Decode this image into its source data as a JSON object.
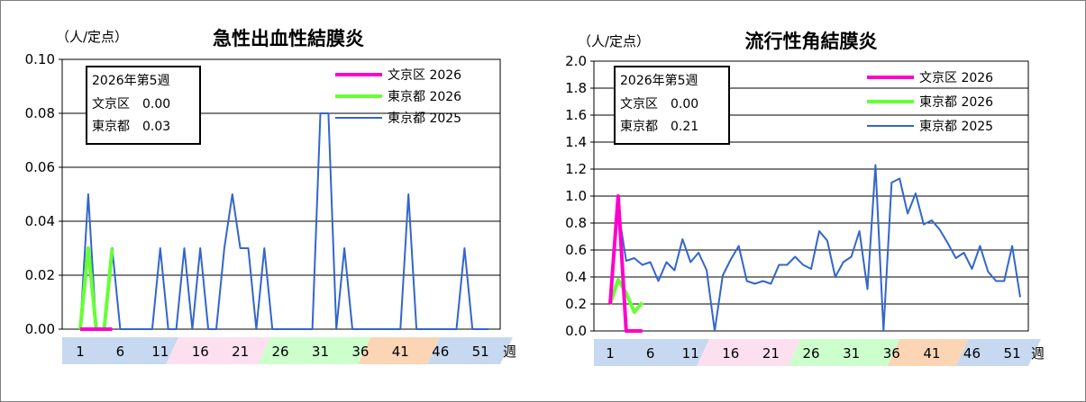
{
  "unit_label": "（人/定点）",
  "week_label": "週",
  "legend_labels": [
    "文京区 2026",
    "東京都 2026",
    "東京都 2025"
  ],
  "colors": {
    "bunkyo_2026": "#ff00cc",
    "tokyo_2026": "#66ff33",
    "tokyo_2025": "#3366cc"
  },
  "season_colors": [
    "#c6d9f1",
    "#fde0ef",
    "#ccffcc",
    "#fcd5b5",
    "#c6d9f1"
  ],
  "x_tick_labels": [
    "1",
    "6",
    "11",
    "16",
    "21",
    "26",
    "31",
    "36",
    "41",
    "46",
    "51"
  ],
  "chart_data": [
    {
      "type": "line",
      "title": "急性出血性結膜炎",
      "ylabel": "（人/定点）",
      "xlabel": "週",
      "ylim": [
        0,
        0.1
      ],
      "y_tick_labels": [
        "0.00",
        "0.02",
        "0.04",
        "0.06",
        "0.08",
        "0.10"
      ],
      "grid": true,
      "legend_position": "top-right",
      "info_box": {
        "week": "2026年第5週",
        "bunkyo": "文京区　0.00",
        "tokyo": "東京都　0.03"
      },
      "series": [
        {
          "name": "文京区 2026",
          "x": [
            1,
            2,
            3,
            4,
            5
          ],
          "values": [
            0,
            0,
            0,
            0,
            0
          ]
        },
        {
          "name": "東京都 2026",
          "x": [
            1,
            2,
            3,
            4,
            5
          ],
          "values": [
            0,
            0.03,
            0,
            0,
            0.03
          ]
        },
        {
          "name": "東京都 2025",
          "x": [
            1,
            2,
            3,
            4,
            5,
            6,
            7,
            8,
            9,
            10,
            11,
            12,
            13,
            14,
            15,
            16,
            17,
            18,
            19,
            20,
            21,
            22,
            23,
            24,
            25,
            26,
            27,
            28,
            29,
            30,
            31,
            32,
            33,
            34,
            35,
            36,
            37,
            38,
            39,
            40,
            41,
            42,
            43,
            44,
            45,
            46,
            47,
            48,
            49,
            50,
            51,
            52
          ],
          "values": [
            0,
            0.05,
            0,
            0,
            0.03,
            0,
            0,
            0,
            0,
            0,
            0.03,
            0,
            0,
            0.03,
            0,
            0.03,
            0,
            0,
            0.03,
            0.05,
            0.03,
            0.03,
            0,
            0.03,
            0,
            0,
            0,
            0,
            0,
            0,
            0.08,
            0.08,
            0,
            0.03,
            0,
            0,
            0,
            0,
            0,
            0,
            0,
            0.05,
            0,
            0,
            0,
            0,
            0,
            0,
            0.03,
            0,
            0,
            0
          ]
        }
      ]
    },
    {
      "type": "line",
      "title": "流行性角結膜炎",
      "ylabel": "（人/定点）",
      "xlabel": "週",
      "ylim": [
        0,
        2.0
      ],
      "y_tick_labels": [
        "0.0",
        "0.2",
        "0.4",
        "0.6",
        "0.8",
        "1.0",
        "1.2",
        "1.4",
        "1.6",
        "1.8",
        "2.0"
      ],
      "grid": true,
      "legend_position": "top-right",
      "info_box": {
        "week": "2026年第5週",
        "bunkyo": "文京区　0.00",
        "tokyo": "東京都　0.21"
      },
      "series": [
        {
          "name": "文京区 2026",
          "x": [
            1,
            2,
            3,
            4,
            5
          ],
          "values": [
            0.2,
            1.0,
            0,
            0,
            0
          ]
        },
        {
          "name": "東京都 2026",
          "x": [
            1,
            2,
            3,
            4,
            5
          ],
          "values": [
            0.2,
            0.38,
            0.28,
            0.14,
            0.21
          ]
        },
        {
          "name": "東京都 2025",
          "x": [
            1,
            2,
            3,
            4,
            5,
            6,
            7,
            8,
            9,
            10,
            11,
            12,
            13,
            14,
            15,
            16,
            17,
            18,
            19,
            20,
            21,
            22,
            23,
            24,
            25,
            26,
            27,
            28,
            29,
            30,
            31,
            32,
            33,
            34,
            35,
            36,
            37,
            38,
            39,
            40,
            41,
            42,
            43,
            44,
            45,
            46,
            47,
            48,
            49,
            50,
            51,
            52
          ],
          "values": [
            0.28,
            0.9,
            0.52,
            0.54,
            0.49,
            0.51,
            0.37,
            0.51,
            0.45,
            0.68,
            0.51,
            0.58,
            0.45,
            0,
            0.41,
            0.53,
            0.63,
            0.37,
            0.35,
            0.37,
            0.35,
            0.49,
            0.49,
            0.55,
            0.49,
            0.46,
            0.74,
            0.67,
            0.4,
            0.51,
            0.55,
            0.74,
            0.31,
            1.23,
            0,
            1.1,
            1.13,
            0.87,
            1.02,
            0.79,
            0.82,
            0.75,
            0.65,
            0.54,
            0.58,
            0.46,
            0.63,
            0.44,
            0.37,
            0.37,
            0.63,
            0.25
          ]
        }
      ]
    }
  ]
}
